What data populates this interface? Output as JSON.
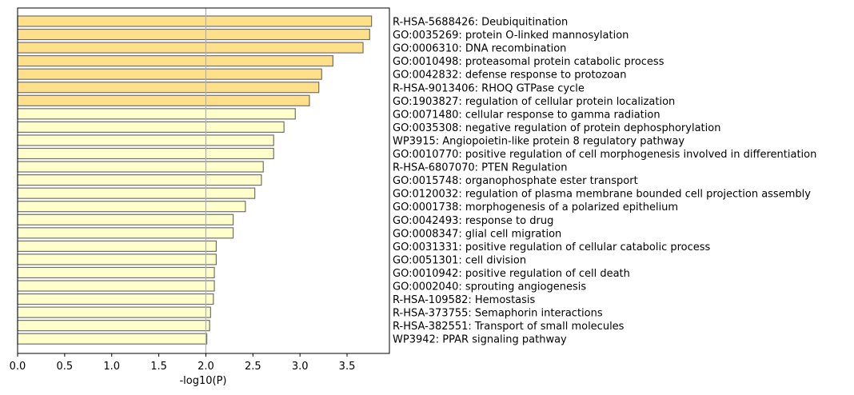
{
  "chart_data": {
    "type": "bar",
    "orientation": "horizontal",
    "xlabel": "-log10(P)",
    "xlim": [
      0,
      3.95
    ],
    "xticks": [
      "0.0",
      "0.5",
      "1.0",
      "1.5",
      "2.0",
      "2.5",
      "3.0",
      "3.5"
    ],
    "reference_line": 2.0,
    "grid": false,
    "colors": {
      "strong": "#ffe08a",
      "weak": "#ffffcc",
      "edge": "#707070",
      "refline": "#b0b0b0"
    },
    "categories": [
      "R-HSA-5688426: Deubiquitination",
      "GO:0035269: protein O-linked mannosylation",
      "GO:0006310: DNA recombination",
      "GO:0010498: proteasomal protein catabolic process",
      "GO:0042832: defense response to protozoan",
      "R-HSA-9013406: RHOQ GTPase cycle",
      "GO:1903827: regulation of cellular protein localization",
      "GO:0071480: cellular response to gamma radiation",
      "GO:0035308: negative regulation of protein dephosphorylation",
      "WP3915: Angiopoietin-like protein 8 regulatory pathway",
      "GO:0010770: positive regulation of cell morphogenesis involved in differentiation",
      "R-HSA-6807070: PTEN Regulation",
      "GO:0015748: organophosphate ester transport",
      "GO:0120032: regulation of plasma membrane bounded cell projection assembly",
      "GO:0001738: morphogenesis of a polarized epithelium",
      "GO:0042493: response to drug",
      "GO:0008347: glial cell migration",
      "GO:0031331: positive regulation of cellular catabolic process",
      "GO:0051301: cell division",
      "GO:0010942: positive regulation of cell death",
      "GO:0002040: sprouting angiogenesis",
      "R-HSA-109582: Hemostasis",
      "R-HSA-373755: Semaphorin interactions",
      "R-HSA-382551: Transport of small molecules",
      "WP3942: PPAR signaling pathway"
    ],
    "values": [
      3.76,
      3.74,
      3.67,
      3.35,
      3.23,
      3.2,
      3.1,
      2.95,
      2.83,
      2.72,
      2.72,
      2.61,
      2.59,
      2.52,
      2.42,
      2.29,
      2.29,
      2.11,
      2.11,
      2.09,
      2.09,
      2.08,
      2.05,
      2.04,
      2.01
    ],
    "levels": [
      "strong",
      "strong",
      "strong",
      "strong",
      "strong",
      "strong",
      "strong",
      "weak",
      "weak",
      "weak",
      "weak",
      "weak",
      "weak",
      "weak",
      "weak",
      "weak",
      "weak",
      "weak",
      "weak",
      "weak",
      "weak",
      "weak",
      "weak",
      "weak",
      "weak"
    ]
  }
}
